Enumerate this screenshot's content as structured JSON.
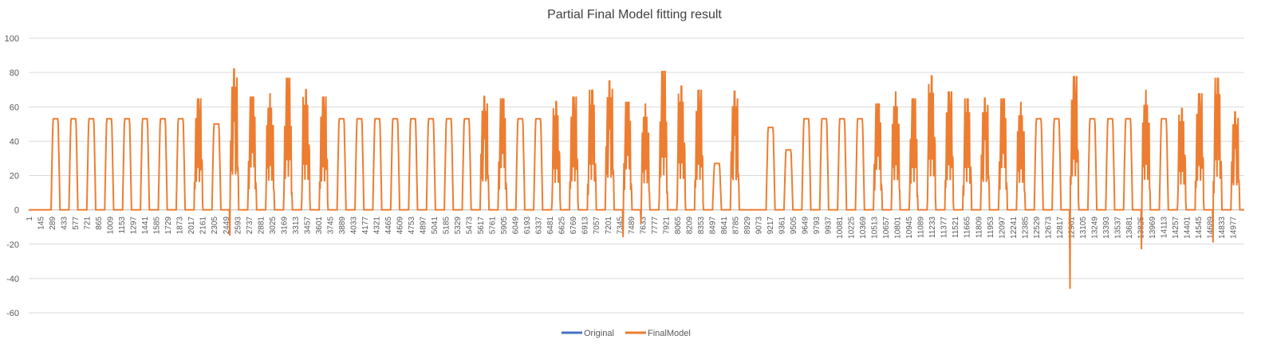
{
  "chart_data": {
    "type": "line",
    "title": "Partial Final Model fitting result",
    "xlabel": "",
    "ylabel": "",
    "ylim": [
      -60,
      100
    ],
    "yticks": [
      100,
      80,
      60,
      40,
      20,
      0,
      -20,
      -40,
      -60
    ],
    "x_tick_labels": [
      "1",
      "145",
      "289",
      "433",
      "577",
      "721",
      "865",
      "1009",
      "1153",
      "1297",
      "1441",
      "1585",
      "1729",
      "1873",
      "2017",
      "2161",
      "2305",
      "2449",
      "2593",
      "2737",
      "2881",
      "3025",
      "3169",
      "3313",
      "3457",
      "3601",
      "3745",
      "3889",
      "4033",
      "4177",
      "4321",
      "4465",
      "4609",
      "4753",
      "4897",
      "5041",
      "5185",
      "5329",
      "5473",
      "5617",
      "5761",
      "5905",
      "6049",
      "6193",
      "6337",
      "6481",
      "6625",
      "6769",
      "6913",
      "7057",
      "7201",
      "7345",
      "7489",
      "7633",
      "7777",
      "7921",
      "8065",
      "8209",
      "8353",
      "8497",
      "8641",
      "8785",
      "8929",
      "9073",
      "9217",
      "9361",
      "9505",
      "9649",
      "9793",
      "9937",
      "10081",
      "10225",
      "10369",
      "10513",
      "10657",
      "10801",
      "10945",
      "11089",
      "11233",
      "11377",
      "11521",
      "11665",
      "11809",
      "11953",
      "12097",
      "12241",
      "12385",
      "12529",
      "12673",
      "12817",
      "12961",
      "13105",
      "13249",
      "13393",
      "13537",
      "13681",
      "13825",
      "13969",
      "14113",
      "14257",
      "14401",
      "14545",
      "14689",
      "14833",
      "14977"
    ],
    "x_range": [
      1,
      15120
    ],
    "grid": true,
    "legend_position": "bottom",
    "series": [
      {
        "name": "Original",
        "color": "#4472C4",
        "values_note": "",
        "peaks": []
      },
      {
        "name": "FinalModel",
        "color": "#ED7D31",
        "day_peaks": [
          0,
          53,
          53,
          53,
          53,
          53,
          53,
          53,
          53,
          65,
          50,
          82,
          66,
          68,
          77,
          70,
          66,
          53,
          53,
          53,
          53,
          53,
          53,
          53,
          53,
          66,
          65,
          53,
          53,
          63,
          66,
          70,
          75,
          63,
          62,
          81,
          72,
          70,
          27,
          69,
          0,
          48,
          35,
          53,
          53,
          53,
          53,
          62,
          69,
          65,
          78,
          69,
          65,
          65,
          65,
          63,
          53,
          53,
          78,
          53,
          53,
          53,
          70,
          53,
          59,
          68,
          77,
          57
        ],
        "day_mins": [
          0,
          0,
          0,
          0,
          0,
          0,
          0,
          0,
          0,
          0,
          0,
          -15,
          0,
          0,
          0,
          0,
          0,
          0,
          0,
          0,
          0,
          0,
          0,
          0,
          0,
          0,
          0,
          0,
          0,
          0,
          0,
          0,
          0,
          -16,
          -8,
          0,
          0,
          0,
          0,
          0,
          0,
          0,
          0,
          0,
          0,
          0,
          0,
          0,
          0,
          0,
          0,
          0,
          0,
          0,
          0,
          0,
          0,
          0,
          -46,
          0,
          0,
          0,
          -23,
          0,
          0,
          0,
          -19,
          0
        ]
      }
    ]
  }
}
